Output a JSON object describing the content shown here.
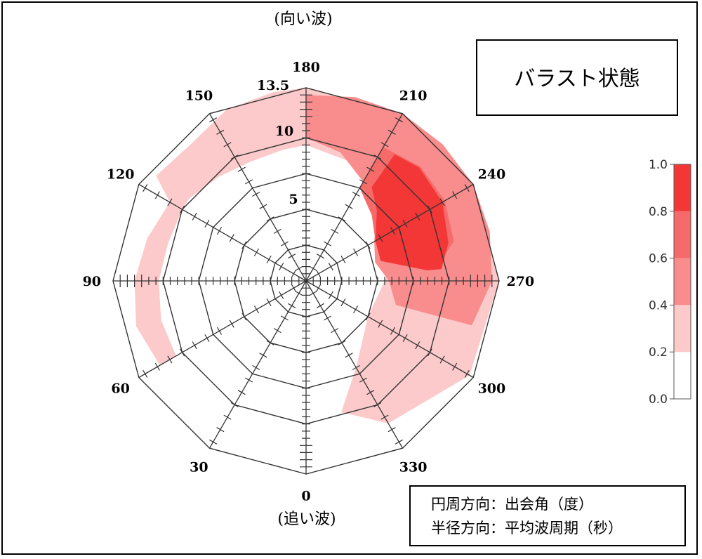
{
  "chart_data": {
    "type": "heatmap",
    "projection": "polar",
    "title": "バラスト状態",
    "top_label": "(向い波)",
    "bottom_label": "(追い波)",
    "angle_labels": [
      "0",
      "30",
      "60",
      "90",
      "120",
      "150",
      "180",
      "210",
      "240",
      "270",
      "300",
      "330"
    ],
    "angle_values": [
      0,
      30,
      60,
      90,
      120,
      150,
      180,
      210,
      240,
      270,
      300,
      330
    ],
    "radial_labels": [
      "5",
      "10",
      "13.5"
    ],
    "radial_values": [
      5,
      10,
      13.5
    ],
    "radial_range": [
      0,
      13.5
    ],
    "legend_lines": [
      "円周方向：出会角（度）",
      "半径方向：平均波周期（秒）"
    ],
    "colorbar": {
      "ticks": [
        "1.0",
        "0.8",
        "0.6",
        "0.4",
        "0.2",
        "0.0"
      ],
      "levels": [
        {
          "range": [
            0.0,
            0.2
          ],
          "color": "#ffffff"
        },
        {
          "range": [
            0.2,
            0.4
          ],
          "color": "#fccaca"
        },
        {
          "range": [
            0.4,
            0.6
          ],
          "color": "#f98c8c"
        },
        {
          "range": [
            0.6,
            0.8
          ],
          "color": "#f76a6a"
        },
        {
          "range": [
            0.8,
            1.0
          ],
          "color": "#f33636"
        }
      ]
    },
    "regions": [
      {
        "level": 0.3,
        "theta": [
          180,
          210,
          240,
          270,
          300,
          330,
          345
        ],
        "r_inner": [
          9.5,
          9,
          8,
          5.5,
          5,
          7,
          9.5
        ],
        "r_outer": [
          13.5,
          13.5,
          13.5,
          13.5,
          13.2,
          11.5,
          9.5
        ]
      },
      {
        "level": 0.3,
        "theta": [
          125,
          140,
          155,
          170,
          180
        ],
        "r_inner": [
          10,
          9.5,
          9.2,
          9.3,
          9.5
        ],
        "r_outer": [
          12.8,
          12.5,
          13.2,
          13.4,
          13.5
        ]
      },
      {
        "level": 0.3,
        "theta": [
          60,
          75,
          90,
          105,
          120,
          125
        ],
        "r_inner": [
          10.5,
          10.5,
          10.3,
          10,
          10,
          10
        ],
        "r_outer": [
          11.8,
          12.3,
          12,
          11.5,
          11,
          12.8
        ]
      },
      {
        "level": 0.5,
        "theta": [
          180,
          195,
          210,
          225,
          240,
          255,
          270,
          285
        ],
        "r_inner": [
          10,
          9.3,
          8,
          7,
          5.5,
          5,
          5.8,
          6.5
        ],
        "r_outer": [
          13,
          13.3,
          13.5,
          13.5,
          13.5,
          13.3,
          13,
          12
        ]
      },
      {
        "level": 0.7,
        "theta": [
          210,
          225,
          240,
          255,
          265
        ],
        "r_inner": [
          7.5,
          6.5,
          5.6,
          5.4,
          8.5
        ],
        "r_outer": [
          10.8,
          11.3,
          11.2,
          10.7,
          9
        ]
      },
      {
        "level": 0.9,
        "theta": [
          215,
          225,
          240,
          255,
          265
        ],
        "r_inner": [
          8,
          7,
          5.6,
          5.4,
          8.5
        ],
        "r_outer": [
          10.8,
          11.2,
          11,
          10.3,
          9.5
        ]
      }
    ]
  }
}
